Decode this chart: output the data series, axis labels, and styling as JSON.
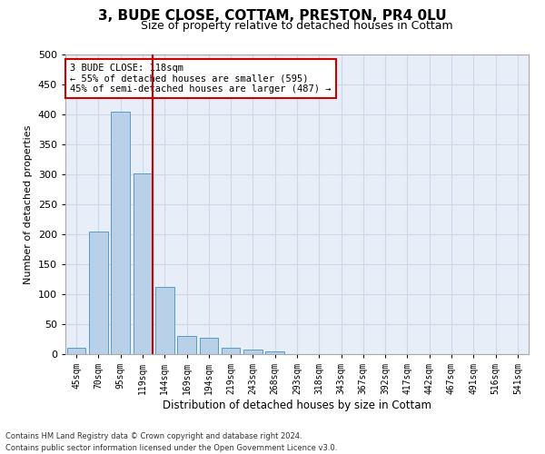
{
  "title1": "3, BUDE CLOSE, COTTAM, PRESTON, PR4 0LU",
  "title2": "Size of property relative to detached houses in Cottam",
  "xlabel": "Distribution of detached houses by size in Cottam",
  "ylabel": "Number of detached properties",
  "categories": [
    "45sqm",
    "70sqm",
    "95sqm",
    "119sqm",
    "144sqm",
    "169sqm",
    "194sqm",
    "219sqm",
    "243sqm",
    "268sqm",
    "293sqm",
    "318sqm",
    "343sqm",
    "367sqm",
    "392sqm",
    "417sqm",
    "442sqm",
    "467sqm",
    "491sqm",
    "516sqm",
    "541sqm"
  ],
  "values": [
    10,
    205,
    405,
    302,
    112,
    30,
    27,
    10,
    8,
    5,
    0,
    0,
    0,
    0,
    0,
    0,
    0,
    0,
    0,
    0,
    0
  ],
  "bar_color": "#b8d0e8",
  "bar_edge_color": "#5a9ac8",
  "grid_color": "#d0d8e8",
  "annotation_line1": "3 BUDE CLOSE: 118sqm",
  "annotation_line2": "← 55% of detached houses are smaller (595)",
  "annotation_line3": "45% of semi-detached houses are larger (487) →",
  "annotation_box_color": "#ffffff",
  "annotation_box_edge": "#cc0000",
  "vline_color": "#cc0000",
  "footnote1": "Contains HM Land Registry data © Crown copyright and database right 2024.",
  "footnote2": "Contains public sector information licensed under the Open Government Licence v3.0.",
  "ylim": [
    0,
    500
  ],
  "yticks": [
    0,
    50,
    100,
    150,
    200,
    250,
    300,
    350,
    400,
    450,
    500
  ],
  "background_color": "#ffffff",
  "plot_bg_color": "#e8eef8"
}
